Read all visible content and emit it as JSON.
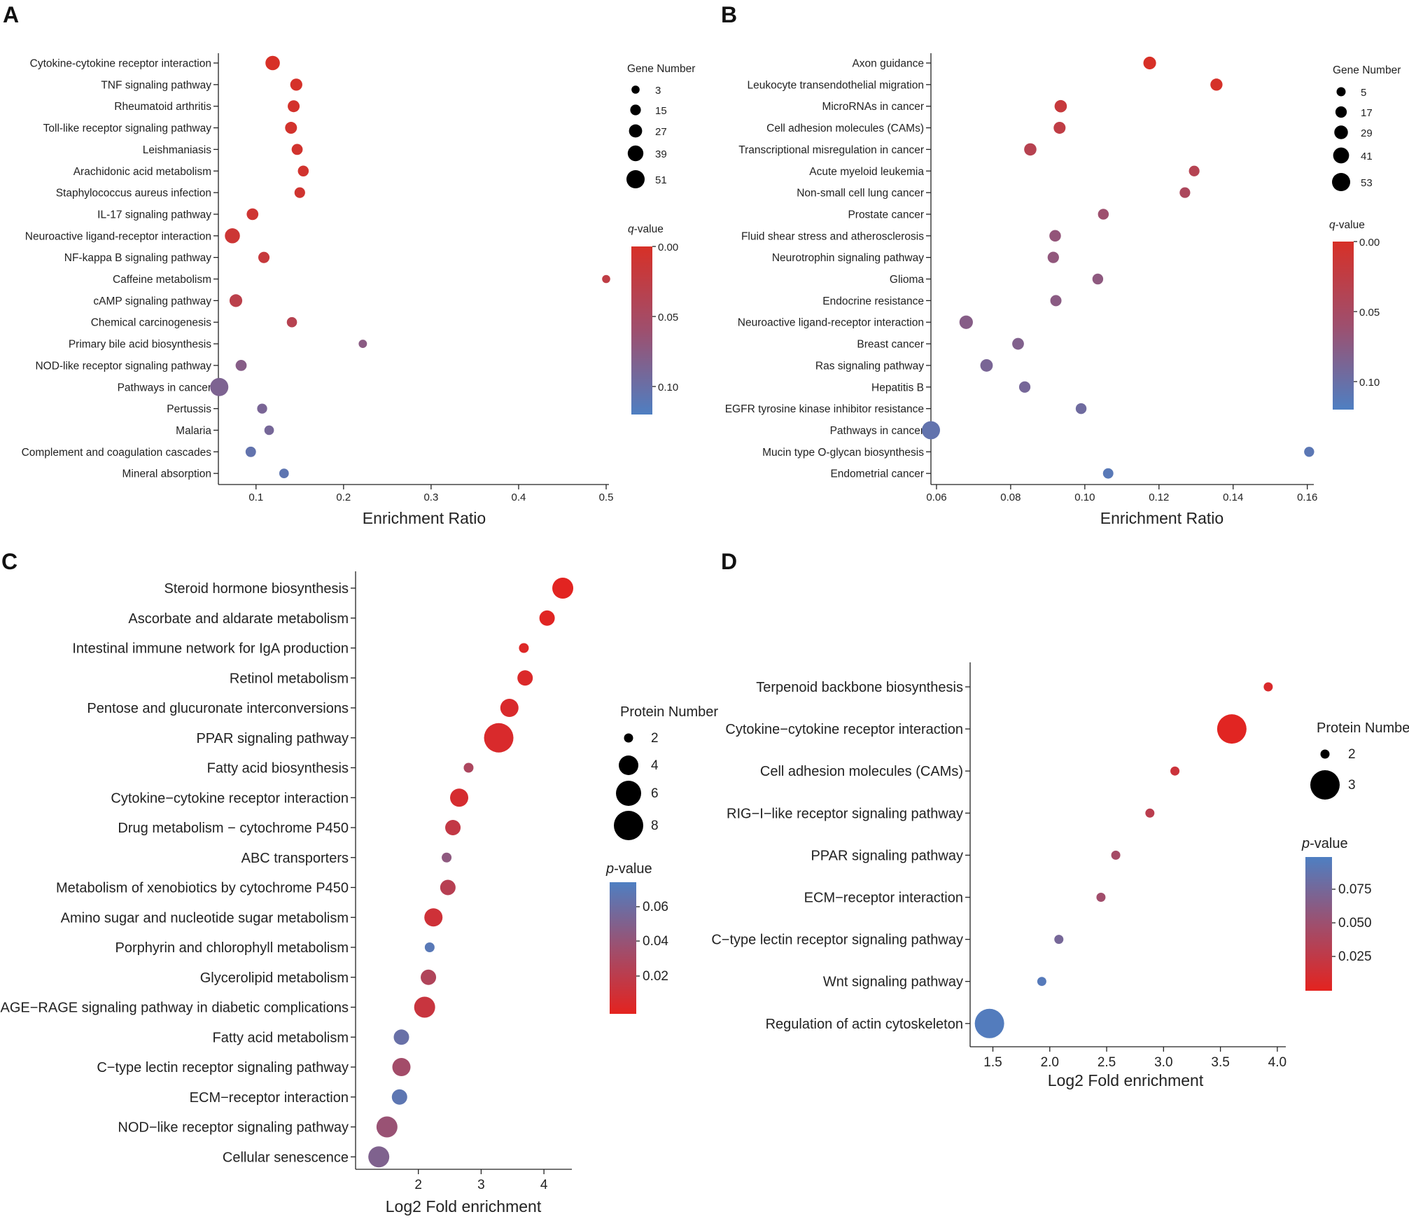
{
  "chart_data": [
    {
      "panel": "A",
      "type": "scatter",
      "xlabel": "Enrichment Ratio",
      "xlim": [
        0.057,
        0.5
      ],
      "xticks": [
        "0.1",
        "0.2",
        "0.3",
        "0.4",
        "0.5"
      ],
      "size_legend": {
        "title": "Gene Number",
        "values": [
          "3",
          "15",
          "27",
          "39",
          "51"
        ]
      },
      "color_legend": {
        "title_italic": "q",
        "title_rest": "-value",
        "ticks": [
          "0.00",
          "0.05",
          "0.10"
        ],
        "range": [
          0.0,
          0.12
        ],
        "low_color": "#d73027",
        "high_color": "#4e7fc2"
      },
      "points": [
        {
          "label": "Cytokine-cytokine receptor interaction",
          "x": 0.119,
          "size": 33,
          "q": 0.0
        },
        {
          "label": "TNF signaling pathway",
          "x": 0.146,
          "size": 22,
          "q": 0.002
        },
        {
          "label": "Rheumatoid arthritis",
          "x": 0.143,
          "size": 21,
          "q": 0.004
        },
        {
          "label": "Toll-like receptor signaling pathway",
          "x": 0.14,
          "size": 21,
          "q": 0.005
        },
        {
          "label": "Leishmaniasis",
          "x": 0.147,
          "size": 17,
          "q": 0.006
        },
        {
          "label": "Arachidonic acid metabolism",
          "x": 0.154,
          "size": 16,
          "q": 0.006
        },
        {
          "label": "Staphylococcus aureus infection",
          "x": 0.15,
          "size": 15,
          "q": 0.008
        },
        {
          "label": "IL-17 signaling pathway",
          "x": 0.096,
          "size": 20,
          "q": 0.01
        },
        {
          "label": "Neuroactive ligand-receptor interaction",
          "x": 0.073,
          "size": 36,
          "q": 0.012
        },
        {
          "label": "NF-kappa B signaling pathway",
          "x": 0.109,
          "size": 18,
          "q": 0.018
        },
        {
          "label": "Caffeine metabolism",
          "x": 0.5,
          "size": 3,
          "q": 0.025
        },
        {
          "label": "cAMP signaling pathway",
          "x": 0.077,
          "size": 25,
          "q": 0.03
        },
        {
          "label": "Chemical carcinogenesis",
          "x": 0.141,
          "size": 13,
          "q": 0.035
        },
        {
          "label": "Primary bile acid biosynthesis",
          "x": 0.222,
          "size": 4,
          "q": 0.075
        },
        {
          "label": "NOD-like receptor signaling pathway",
          "x": 0.083,
          "size": 17,
          "q": 0.078
        },
        {
          "label": "Pathways in cancer",
          "x": 0.058,
          "size": 51,
          "q": 0.085
        },
        {
          "label": "Pertussis",
          "x": 0.107,
          "size": 12,
          "q": 0.088
        },
        {
          "label": "Malaria",
          "x": 0.115,
          "size": 10,
          "q": 0.09
        },
        {
          "label": "Complement and coagulation cascades",
          "x": 0.094,
          "size": 14,
          "q": 0.105
        },
        {
          "label": "Mineral absorption",
          "x": 0.132,
          "size": 10,
          "q": 0.108
        }
      ]
    },
    {
      "panel": "B",
      "type": "scatter",
      "xlabel": "Enrichment Ratio",
      "xlim": [
        0.0585,
        0.161
      ],
      "xticks": [
        "0.06",
        "0.08",
        "0.10",
        "0.12",
        "0.14",
        "0.16"
      ],
      "size_legend": {
        "title": "Gene Number",
        "values": [
          "5",
          "17",
          "29",
          "41",
          "53"
        ]
      },
      "color_legend": {
        "title_italic": "q",
        "title_rest": "-value",
        "ticks": [
          "0.00",
          "0.05",
          "0.10"
        ],
        "range": [
          0.0,
          0.12
        ],
        "low_color": "#d73027",
        "high_color": "#4e7fc2"
      },
      "points": [
        {
          "label": "Axon guidance",
          "x": 0.1175,
          "size": 24,
          "q": 0.0
        },
        {
          "label": "Leukocyte transendothelial migration",
          "x": 0.1355,
          "size": 21,
          "q": 0.002
        },
        {
          "label": "MicroRNAs in cancer",
          "x": 0.0935,
          "size": 22,
          "q": 0.018
        },
        {
          "label": "Cell adhesion molecules (CAMs)",
          "x": 0.0932,
          "size": 20,
          "q": 0.025
        },
        {
          "label": "Transcriptional misregulation in cancer",
          "x": 0.0853,
          "size": 22,
          "q": 0.035
        },
        {
          "label": "Acute myeloid leukemia",
          "x": 0.1295,
          "size": 13,
          "q": 0.036
        },
        {
          "label": "Non-small cell lung cancer",
          "x": 0.127,
          "size": 13,
          "q": 0.045
        },
        {
          "label": "Prostate cancer",
          "x": 0.105,
          "size": 14,
          "q": 0.06
        },
        {
          "label": "Fluid shear stress and atherosclerosis",
          "x": 0.092,
          "size": 18,
          "q": 0.068
        },
        {
          "label": "Neurotrophin signaling pathway",
          "x": 0.0915,
          "size": 17,
          "q": 0.07
        },
        {
          "label": "Glioma",
          "x": 0.1035,
          "size": 14,
          "q": 0.072
        },
        {
          "label": "Endocrine resistance",
          "x": 0.0922,
          "size": 16,
          "q": 0.075
        },
        {
          "label": "Neuroactive ligand-receptor interaction",
          "x": 0.068,
          "size": 28,
          "q": 0.078
        },
        {
          "label": "Breast cancer",
          "x": 0.082,
          "size": 19,
          "q": 0.082
        },
        {
          "label": "Ras signaling pathway",
          "x": 0.0735,
          "size": 23,
          "q": 0.088
        },
        {
          "label": "Hepatitis B",
          "x": 0.0838,
          "size": 17,
          "q": 0.09
        },
        {
          "label": "EGFR tyrosine kinase inhibitor resistance",
          "x": 0.099,
          "size": 14,
          "q": 0.095
        },
        {
          "label": "Pathways in cancer",
          "x": 0.0585,
          "size": 53,
          "q": 0.105
        },
        {
          "label": "Mucin type O-glycan biosynthesis",
          "x": 0.1605,
          "size": 10,
          "q": 0.11
        },
        {
          "label": "Endometrial cancer",
          "x": 0.1063,
          "size": 12,
          "q": 0.112
        }
      ]
    },
    {
      "panel": "C",
      "type": "scatter",
      "xlabel": "Log2 Fold enrichment",
      "xlim": [
        1.0,
        4.4
      ],
      "xticks": [
        "2",
        "3",
        "4"
      ],
      "size_legend": {
        "title": "Protein Number",
        "values": [
          "2",
          "4",
          "6",
          "8"
        ]
      },
      "color_legend": {
        "title_italic": "p",
        "title_rest": "-value",
        "ticks": [
          "0.06",
          "0.04",
          "0.02"
        ],
        "range": [
          0.0,
          0.075
        ],
        "low_color": "#e4231f",
        "high_color": "#4e7fc2"
      },
      "points": [
        {
          "label": "Steroid hormone biosynthesis",
          "x": 4.3,
          "size": 6,
          "p": 0.001
        },
        {
          "label": "Ascorbate and aldarate metabolism",
          "x": 4.05,
          "size": 4,
          "p": 0.002
        },
        {
          "label": "Intestinal immune network for IgA production",
          "x": 3.68,
          "size": 2,
          "p": 0.004
        },
        {
          "label": "Retinol metabolism",
          "x": 3.7,
          "size": 4,
          "p": 0.005
        },
        {
          "label": "Pentose and glucuronate interconversions",
          "x": 3.45,
          "size": 5,
          "p": 0.006
        },
        {
          "label": "PPAR signaling pathway",
          "x": 3.28,
          "size": 9,
          "p": 0.006
        },
        {
          "label": "Fatty acid biosynthesis",
          "x": 2.8,
          "size": 2,
          "p": 0.03
        },
        {
          "label": "Cytokine−cytokine receptor interaction",
          "x": 2.65,
          "size": 5,
          "p": 0.008
        },
        {
          "label": "Drug metabolism − cytochrome P450",
          "x": 2.55,
          "size": 4,
          "p": 0.018
        },
        {
          "label": "ABC transporters",
          "x": 2.45,
          "size": 2,
          "p": 0.045
        },
        {
          "label": "Metabolism of xenobiotics by cytochrome P450",
          "x": 2.47,
          "size": 4,
          "p": 0.024
        },
        {
          "label": "Amino sugar and nucleotide sugar metabolism",
          "x": 2.24,
          "size": 5,
          "p": 0.012
        },
        {
          "label": "Porphyrin and chlorophyll metabolism",
          "x": 2.18,
          "size": 2,
          "p": 0.07
        },
        {
          "label": "Glycerolipid metabolism",
          "x": 2.16,
          "size": 4,
          "p": 0.028
        },
        {
          "label": "AGE−RAGE signaling pathway in diabetic complications",
          "x": 2.1,
          "size": 6,
          "p": 0.015
        },
        {
          "label": "Fatty acid metabolism",
          "x": 1.73,
          "size": 4,
          "p": 0.063
        },
        {
          "label": "C−type lectin receptor signaling pathway",
          "x": 1.73,
          "size": 5,
          "p": 0.035
        },
        {
          "label": "ECM−receptor interaction",
          "x": 1.7,
          "size": 4,
          "p": 0.068
        },
        {
          "label": "NOD−like receptor signaling pathway",
          "x": 1.5,
          "size": 6,
          "p": 0.04
        },
        {
          "label": "Cellular senescence",
          "x": 1.37,
          "size": 6,
          "p": 0.052
        }
      ]
    },
    {
      "panel": "D",
      "type": "scatter",
      "xlabel": "Log2 Fold enrichment",
      "xlim": [
        1.3,
        4.05
      ],
      "xticks": [
        "1.5",
        "2.0",
        "2.5",
        "3.0",
        "3.5",
        "4.0"
      ],
      "size_legend": {
        "title": "Protein Number",
        "values": [
          "2",
          "3"
        ]
      },
      "color_legend": {
        "title_italic": "p",
        "title_rest": "-value",
        "ticks": [
          "0.075",
          "0.050",
          "0.025"
        ],
        "range": [
          0.0,
          0.1
        ],
        "low_color": "#e4231f",
        "high_color": "#4e7fc2"
      },
      "points": [
        {
          "label": "Terpenoid backbone biosynthesis",
          "x": 3.92,
          "size": 2,
          "p": 0.008
        },
        {
          "label": "Cytokine−cytokine receptor interaction",
          "x": 3.6,
          "size": 3,
          "p": 0.002
        },
        {
          "label": "Cell adhesion molecules (CAMs)",
          "x": 3.1,
          "size": 2,
          "p": 0.018
        },
        {
          "label": "RIG−I−like receptor signaling pathway",
          "x": 2.88,
          "size": 2,
          "p": 0.03
        },
        {
          "label": "PPAR signaling pathway",
          "x": 2.58,
          "size": 2,
          "p": 0.045
        },
        {
          "label": "ECM−receptor interaction",
          "x": 2.45,
          "size": 2,
          "p": 0.048
        },
        {
          "label": "C−type lectin receptor signaling pathway",
          "x": 2.08,
          "size": 2,
          "p": 0.075
        },
        {
          "label": "Wnt signaling pathway",
          "x": 1.93,
          "size": 2,
          "p": 0.095
        },
        {
          "label": "Regulation of actin cytoskeleton",
          "x": 1.47,
          "size": 3,
          "p": 0.097
        }
      ]
    }
  ]
}
